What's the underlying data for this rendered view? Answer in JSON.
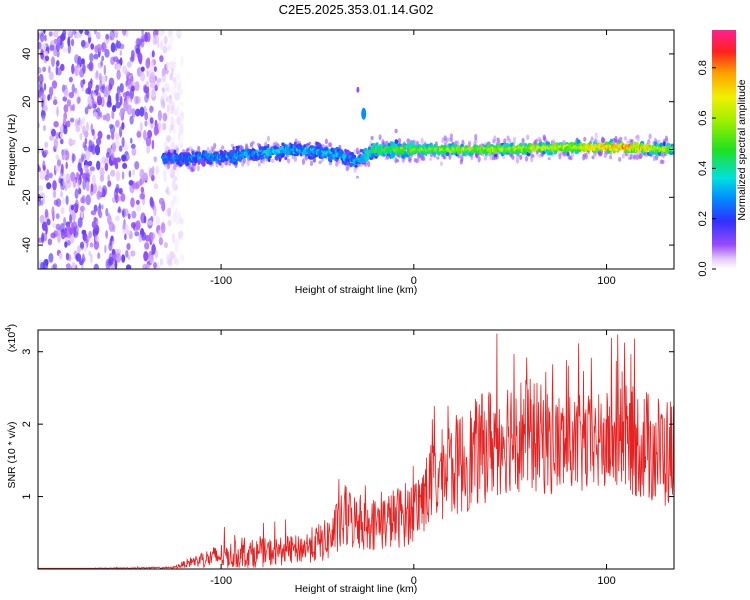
{
  "title": "C2E5.2025.353.01.14.G02",
  "chart_data": [
    {
      "type": "heatmap",
      "title": "C2E5.2025.353.01.14.G02",
      "xlabel": "Height of straight line (km)",
      "ylabel": "Frequency (Hz)",
      "xlim": [
        -195,
        135
      ],
      "ylim": [
        -50,
        50
      ],
      "xticks": [
        -100,
        0,
        100
      ],
      "xtick_labels": [
        "-100",
        "0",
        "100"
      ],
      "yticks": [
        -40,
        -20,
        0,
        20,
        40
      ],
      "ytick_labels": [
        "-40",
        "-20",
        "0",
        "20",
        "40"
      ],
      "description_series": [
        {
          "name": "noise_region",
          "x_range": [
            -195,
            -120
          ],
          "freq_range": [
            -50,
            50
          ],
          "amplitude": "low-scattered"
        },
        {
          "name": "signal_ridge",
          "x": [
            -130,
            -100,
            -60,
            -40,
            -30,
            -20,
            0,
            40,
            80,
            110,
            135
          ],
          "freq_hz": [
            -4,
            -3,
            0,
            -2,
            -5,
            0,
            0,
            0,
            1,
            1,
            0
          ],
          "amplitude": [
            0.25,
            0.3,
            0.35,
            0.35,
            0.3,
            0.5,
            0.6,
            0.65,
            0.7,
            0.9,
            0.6
          ]
        },
        {
          "name": "spur",
          "x": [
            -26
          ],
          "freq_hz": [
            15
          ],
          "amplitude": [
            0.3
          ]
        }
      ],
      "colorbar": {
        "label": "Normalized spectral amplitude",
        "range": [
          0,
          0.95
        ],
        "ticks": [
          0.0,
          0.2,
          0.4,
          0.6,
          0.8
        ],
        "tick_labels": [
          "0.0",
          "0.2",
          "0.4",
          "0.6",
          "0.8"
        ]
      }
    },
    {
      "type": "line",
      "xlabel": "Height of straight line (km)",
      "ylabel": "SNR (10 * v/v)",
      "yscale_label": "(x10",
      "yscale_exp": "4",
      "yscale_close": ")",
      "xlim": [
        -195,
        135
      ],
      "ylim": [
        0,
        3.3
      ],
      "xticks": [
        -100,
        0,
        100
      ],
      "xtick_labels": [
        "-100",
        "0",
        "100"
      ],
      "yticks": [
        1,
        2,
        3
      ],
      "ytick_labels": [
        "1",
        "2",
        "3"
      ],
      "series": [
        {
          "name": "SNR",
          "color": "#e82020",
          "envelope_x": [
            -195,
            -125,
            -115,
            -100,
            -80,
            -60,
            -45,
            -35,
            -25,
            -15,
            -5,
            0,
            10,
            20,
            30,
            40,
            50,
            60,
            70,
            80,
            90,
            100,
            110,
            120,
            130,
            135
          ],
          "envelope_mean": [
            0.0,
            0.02,
            0.1,
            0.18,
            0.22,
            0.27,
            0.4,
            0.7,
            0.6,
            0.65,
            0.75,
            0.8,
            1.2,
            1.4,
            1.55,
            1.75,
            1.9,
            1.85,
            1.75,
            1.7,
            1.7,
            1.75,
            1.8,
            1.7,
            1.6,
            1.6
          ],
          "envelope_spread": [
            0.0,
            0.01,
            0.08,
            0.18,
            0.2,
            0.2,
            0.3,
            0.45,
            0.35,
            0.4,
            0.45,
            0.45,
            0.6,
            0.7,
            0.75,
            0.8,
            0.85,
            0.8,
            0.75,
            0.7,
            0.7,
            0.7,
            0.75,
            0.8,
            0.8,
            0.8
          ]
        }
      ]
    }
  ],
  "colors": {
    "line": "#e82020",
    "background": "#ffffff",
    "axis": "#000000"
  }
}
